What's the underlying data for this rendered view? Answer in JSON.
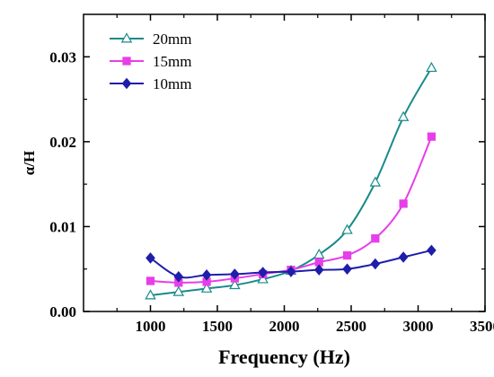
{
  "chart_data": {
    "type": "line",
    "xlabel": "Frequency (Hz)",
    "ylabel": "α/H",
    "xlim": [
      500,
      3500
    ],
    "ylim": [
      0,
      0.035
    ],
    "x_ticks": [
      1000,
      1500,
      2000,
      2500,
      3000,
      3500
    ],
    "x_tick_labels": [
      "1000",
      "1500",
      "2000",
      "2500",
      "3000",
      "3500"
    ],
    "y_ticks": [
      0,
      0.01,
      0.02,
      0.03
    ],
    "y_tick_labels": [
      "0.00",
      "0.01",
      "0.02",
      "0.03"
    ],
    "legend_position": "top-left",
    "grid": false,
    "series": [
      {
        "name": "20mm",
        "color": "#1a8a8a",
        "marker": "triangle-open",
        "x": [
          1000,
          1210,
          1420,
          1630,
          1840,
          2050,
          2260,
          2470,
          2680,
          2890,
          3100
        ],
        "y": [
          0.0019,
          0.0023,
          0.0027,
          0.0031,
          0.0038,
          0.0048,
          0.0067,
          0.0096,
          0.0152,
          0.0229,
          0.0287
        ]
      },
      {
        "name": "15mm",
        "color": "#e83ee8",
        "marker": "square",
        "x": [
          1000,
          1210,
          1420,
          1630,
          1840,
          2050,
          2260,
          2470,
          2680,
          2890,
          3100
        ],
        "y": [
          0.0036,
          0.0034,
          0.0035,
          0.0039,
          0.0044,
          0.0049,
          0.0058,
          0.0066,
          0.0086,
          0.0127,
          0.0206
        ]
      },
      {
        "name": "10mm",
        "color": "#1e1eaa",
        "marker": "diamond",
        "x": [
          1000,
          1210,
          1420,
          1630,
          1840,
          2050,
          2260,
          2470,
          2680,
          2890,
          3100
        ],
        "y": [
          0.0063,
          0.0041,
          0.0043,
          0.0044,
          0.0046,
          0.0047,
          0.0049,
          0.005,
          0.0056,
          0.0064,
          0.0072
        ]
      }
    ]
  }
}
